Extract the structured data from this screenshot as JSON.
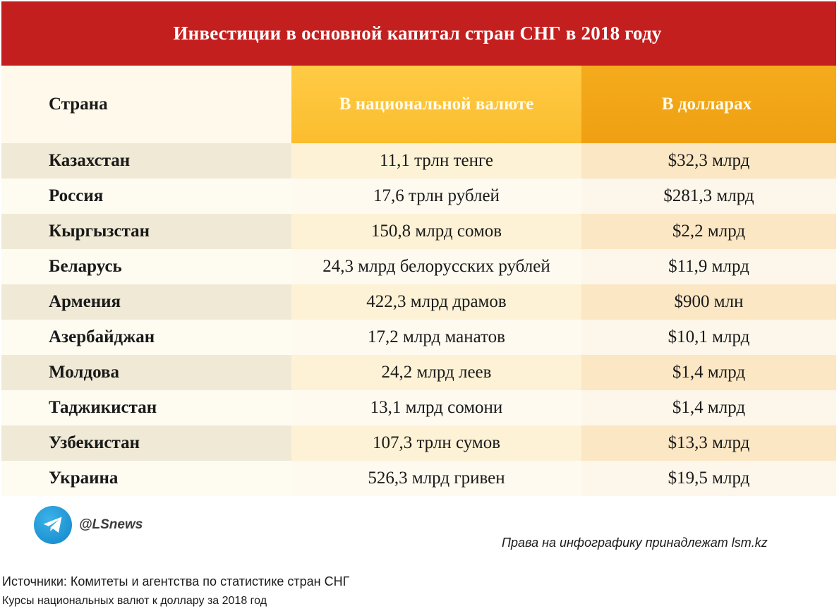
{
  "title": "Инвестиции в основной капитал стран СНГ в 2018 году",
  "columns": {
    "country": "Страна",
    "national": "В национальной валюте",
    "usd": "В долларах"
  },
  "rows": [
    {
      "country": "Казахстан",
      "national": "11,1 трлн тенге",
      "usd": "$32,3 млрд"
    },
    {
      "country": "Россия",
      "national": "17,6 трлн рублей",
      "usd": "$281,3 млрд"
    },
    {
      "country": "Кыргызстан",
      "national": "150,8 млрд сомов",
      "usd": "$2,2 млрд"
    },
    {
      "country": "Беларусь",
      "national": "24,3 млрд белорусских рублей",
      "usd": "$11,9 млрд"
    },
    {
      "country": "Армения",
      "national": "422,3 млрд драмов",
      "usd": "$900 млн"
    },
    {
      "country": "Азербайджан",
      "national": "17,2 млрд манатов",
      "usd": "$10,1 млрд"
    },
    {
      "country": "Молдова",
      "national": "24,2 млрд леев",
      "usd": "$1,4 млрд"
    },
    {
      "country": "Таджикистан",
      "national": "13,1 млрд сомони",
      "usd": "$1,4 млрд"
    },
    {
      "country": "Узбекистан",
      "national": "107,3 трлн сумов",
      "usd": "$13,3 млрд"
    },
    {
      "country": "Украина",
      "national": "526,3 млрд гривен",
      "usd": "$19,5 млрд"
    }
  ],
  "brand": {
    "icon": "telegram-icon",
    "handle": "@LSnews"
  },
  "rights": "Права на инфографику принадлежат lsm.kz",
  "sources": "Источники: Комитеты и агентства по статистике стран СНГ",
  "rates_note": "Курсы национальных валют к доллару за 2018 год",
  "colors": {
    "title_bg": "#c41f1f",
    "header_national": "#ffcb45",
    "header_usd": "#f4ab1c",
    "telegram": "#1e93d2"
  }
}
